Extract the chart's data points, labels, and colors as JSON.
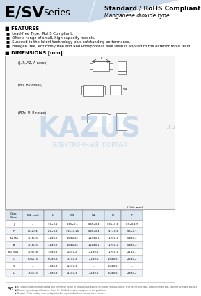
{
  "title_main": "E/SV",
  "title_series": "Series",
  "title_standard": "Standard / RoHS Compliant",
  "title_type": "Manganese dioxide type",
  "header_bg": "#c8d8e8",
  "features_title": "FEATURES",
  "features": [
    "Lead-free Type.  RoHS Compliant.",
    "Offer a range of small, high-capacity models.",
    "Succeed to the latest technology plus outstanding performance.",
    "Halogen free, Antimony free and Red Phosphorous free resin is applied to the exterior mold resin."
  ],
  "dimensions_title": "DIMENSIONS [mm]",
  "case_labels": [
    "(J, P, A2, A cases)",
    "(B0, B2 cases)",
    "(B2s, V, P cases)"
  ],
  "table_headers": [
    "Case\nCode",
    "EIA code",
    "L",
    "W1",
    "W2",
    "H",
    "F"
  ],
  "table_rows": [
    [
      "J",
      "--",
      "1.6±0.1",
      "0.85±0.1",
      "0.65±0.1",
      "0.85±0.1",
      "0.5±0.125"
    ],
    [
      "P",
      "2012/21",
      "2.0±0.2",
      "1.25±0.25",
      "0.65±0.1",
      "1.1±0.1",
      "0.5±0.1"
    ],
    [
      "A2 /A3",
      "3216/25",
      "3.2±0.2",
      "1.6±0.25",
      "1.15±0.1",
      "1.9±0.1",
      "0.8±0.2"
    ],
    [
      "A",
      "3216/25",
      "3.2±0.2",
      "1.6±0.25",
      "1.21±0.1",
      "1.9±0.1",
      "0.8±0.2"
    ],
    [
      "B0 (B01)",
      "3528/28",
      "3.5±0.2",
      "2.8±0.2",
      "2.2±0.1",
      "1.9±0.1",
      "2.1±0.1"
    ],
    [
      "C",
      "6032/15",
      "6.0±0.3",
      "3.2±0.3",
      "2.2±0.5",
      "1.5±0.5",
      "2.6±0.2"
    ],
    [
      "V",
      "--",
      "7.3±0.3",
      "4.3±0.3",
      "...",
      "2.0±0.5",
      "..."
    ],
    [
      "D",
      "7343/15",
      "7.3±0.3",
      "4.3±0.3",
      "2.4±0.5",
      "2.0±0.5",
      "2.8±0.2"
    ]
  ],
  "watermark_text": "KAZUS",
  "watermark_sub": "ЭЛЕКТРОННЫЙ  ПОРТАЛ",
  "footer_text": "30",
  "page_bg": "#ffffff",
  "box_border": "#aaaaaa"
}
